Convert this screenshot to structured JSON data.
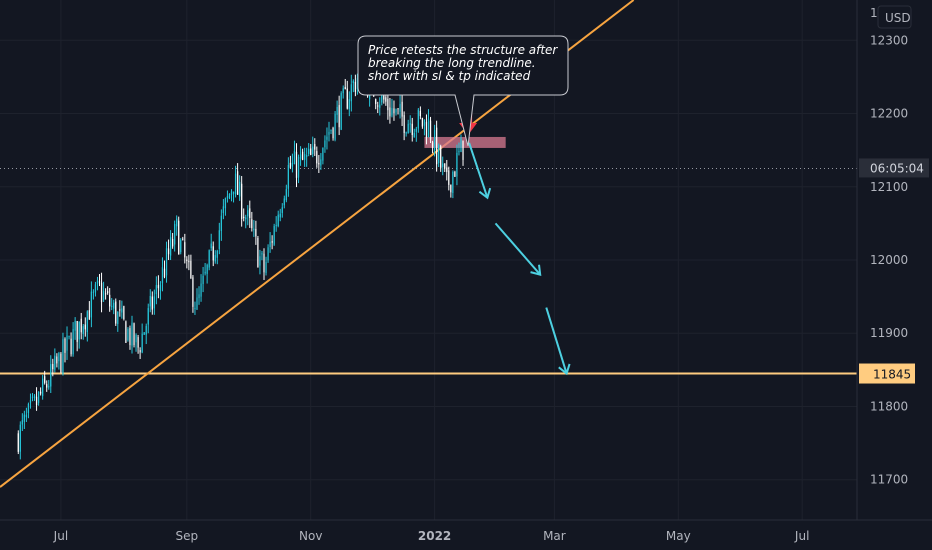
{
  "currency": "USD",
  "price_axis": {
    "top_partial_label": "12",
    "ticks": [
      "12300",
      "12200",
      "12100",
      "12000",
      "11900",
      "11800",
      "11700"
    ]
  },
  "time_axis": {
    "ticks": [
      "Jul",
      "Sep",
      "Nov",
      "2022",
      "Mar",
      "May",
      "Jul"
    ]
  },
  "countdown_label": "06:05:04",
  "horizontal_level_label": "11845",
  "annotation": {
    "lines": [
      "Price retests the structure after",
      "breaking the long trendline.",
      "short with sl & tp indicated"
    ]
  },
  "colors": {
    "background": "#131722",
    "grid": "#1e222d",
    "bull": "#26c6da",
    "bear": "#ffffff",
    "trendline": "#f7a440",
    "level": "#ffcc80",
    "zone": "#d97b92",
    "arrow_down": "#f23645",
    "path": "#4dd0e1",
    "price_dotted": "#9598a1"
  },
  "chart_data": {
    "type": "candlestick",
    "x_unit": "date",
    "y_unit": "price",
    "ylim": [
      11645,
      12355
    ],
    "xlim": [
      "2021-06-01",
      "2022-07-28"
    ],
    "grid": true,
    "x_ticks": [
      {
        "label": "Jul",
        "date": "2021-07-01"
      },
      {
        "label": "Sep",
        "date": "2021-09-01"
      },
      {
        "label": "Nov",
        "date": "2021-11-01"
      },
      {
        "label": "2022",
        "date": "2022-01-01"
      },
      {
        "label": "Mar",
        "date": "2022-03-01"
      },
      {
        "label": "May",
        "date": "2022-05-01"
      },
      {
        "label": "Jul",
        "date": "2022-07-01"
      }
    ],
    "y_ticks": [
      12300,
      12200,
      12100,
      12000,
      11900,
      11800,
      11700
    ],
    "key_points": [
      {
        "date": "2021-06-10",
        "close": 11760
      },
      {
        "date": "2021-07-20",
        "close": 11960
      },
      {
        "date": "2021-08-08",
        "close": 11880
      },
      {
        "date": "2021-08-27",
        "close": 12040
      },
      {
        "date": "2021-09-06",
        "close": 11935
      },
      {
        "date": "2021-09-24",
        "close": 12110
      },
      {
        "date": "2021-10-09",
        "close": 11985
      },
      {
        "date": "2021-10-21",
        "close": 12125
      },
      {
        "date": "2021-11-03",
        "close": 12140
      },
      {
        "date": "2021-11-25",
        "close": 12255
      },
      {
        "date": "2021-12-14",
        "close": 12195
      },
      {
        "date": "2021-12-29",
        "close": 12185
      },
      {
        "date": "2022-01-07",
        "close": 12100
      },
      {
        "date": "2022-01-15",
        "close": 12155
      }
    ],
    "last_price": 12125,
    "trendline": [
      {
        "date": "2021-06-01",
        "price": 11690
      },
      {
        "date": "2022-04-09",
        "price": 12355
      }
    ],
    "horizontal_level": 11845,
    "zone": {
      "from": "2021-12-27",
      "to": "2022-02-05",
      "low": 12153,
      "high": 12168
    },
    "projected_path": [
      {
        "date": "2022-01-18",
        "price": 12160
      },
      {
        "date": "2022-01-27",
        "price": 12085
      },
      {
        "date": "2022-01-31",
        "price": 12050
      },
      {
        "date": "2022-02-22",
        "price": 11980
      },
      {
        "date": "2022-02-25",
        "price": 11935
      },
      {
        "date": "2022-03-07",
        "price": 11845
      }
    ]
  }
}
